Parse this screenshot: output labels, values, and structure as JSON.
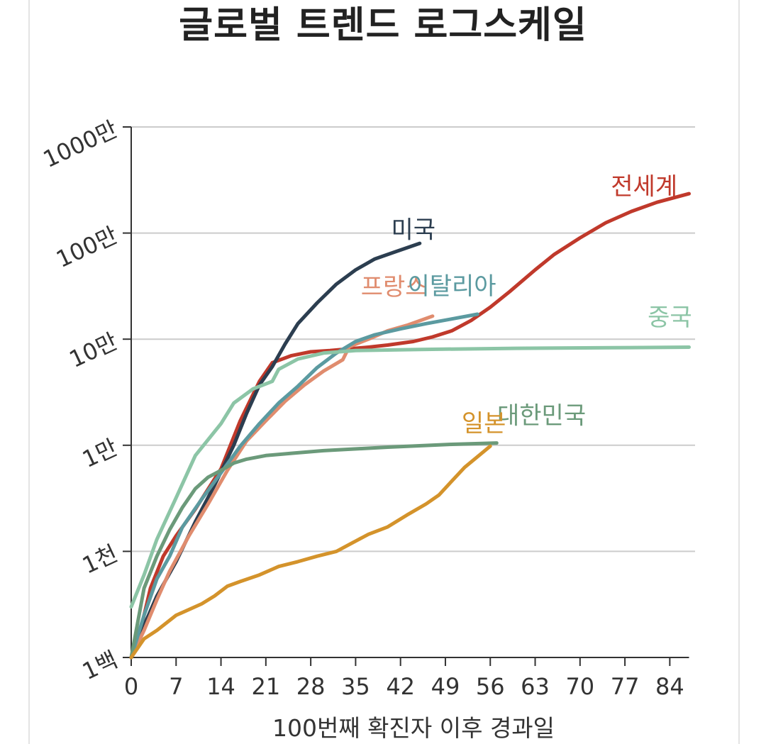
{
  "chart_data": {
    "type": "line",
    "title": "글로벌 트렌드 로그스케일",
    "xlabel": "100번째 확진자 이후 경과일",
    "ylabel": "",
    "y_scale": "log",
    "ylim": [
      100,
      10000000
    ],
    "xlim": [
      0,
      87
    ],
    "x_ticks": [
      0,
      7,
      14,
      21,
      28,
      35,
      42,
      49,
      56,
      63,
      70,
      77,
      84
    ],
    "x_tick_labels": [
      "0",
      "7",
      "14",
      "21",
      "28",
      "35",
      "42",
      "49",
      "56",
      "63",
      "70",
      "77",
      "84"
    ],
    "y_ticks": [
      100,
      1000,
      10000,
      100000,
      1000000,
      10000000
    ],
    "y_tick_labels": [
      "1백",
      "1천",
      "1만",
      "10만",
      "100만",
      "1000만"
    ],
    "grid": "horizontal",
    "legend": "inline labels at line ends",
    "series": [
      {
        "name": "전세계",
        "color": "#c0392b",
        "label_at": [
          80,
          2300000
        ],
        "points": [
          [
            0,
            100
          ],
          [
            1,
            140
          ],
          [
            2,
            250
          ],
          [
            3,
            450
          ],
          [
            5,
            900
          ],
          [
            7,
            1400
          ],
          [
            10,
            2500
          ],
          [
            14,
            6000
          ],
          [
            17,
            17000
          ],
          [
            20,
            40000
          ],
          [
            22,
            60000
          ],
          [
            25,
            70000
          ],
          [
            28,
            76000
          ],
          [
            31,
            78000
          ],
          [
            34,
            81000
          ],
          [
            37,
            84000
          ],
          [
            40,
            88000
          ],
          [
            44,
            95000
          ],
          [
            47,
            105000
          ],
          [
            50,
            120000
          ],
          [
            53,
            150000
          ],
          [
            56,
            200000
          ],
          [
            59,
            280000
          ],
          [
            63,
            450000
          ],
          [
            66,
            630000
          ],
          [
            70,
            900000
          ],
          [
            74,
            1250000
          ],
          [
            78,
            1600000
          ],
          [
            82,
            1950000
          ],
          [
            87,
            2350000
          ]
        ]
      },
      {
        "name": "미국",
        "color": "#2c3e50",
        "label_at": [
          44,
          900000
        ],
        "points": [
          [
            0,
            100
          ],
          [
            2,
            200
          ],
          [
            4,
            380
          ],
          [
            7,
            800
          ],
          [
            10,
            1900
          ],
          [
            13,
            4200
          ],
          [
            16,
            10000
          ],
          [
            18,
            20000
          ],
          [
            20,
            37000
          ],
          [
            22,
            55000
          ],
          [
            24,
            90000
          ],
          [
            26,
            140000
          ],
          [
            29,
            220000
          ],
          [
            32,
            330000
          ],
          [
            35,
            450000
          ],
          [
            38,
            570000
          ],
          [
            41,
            660000
          ],
          [
            45,
            800000
          ]
        ]
      },
      {
        "name": "프랑스",
        "color": "#e08c6e",
        "label_at": [
          41,
          260000
        ],
        "points": [
          [
            0,
            100
          ],
          [
            2,
            180
          ],
          [
            4,
            350
          ],
          [
            6,
            650
          ],
          [
            9,
            1400
          ],
          [
            12,
            2800
          ],
          [
            15,
            5800
          ],
          [
            18,
            11000
          ],
          [
            21,
            17000
          ],
          [
            24,
            26000
          ],
          [
            27,
            37000
          ],
          [
            30,
            50000
          ],
          [
            33,
            64000
          ],
          [
            34,
            85000
          ],
          [
            37,
            100000
          ],
          [
            40,
            120000
          ],
          [
            43,
            135000
          ],
          [
            47,
            165000
          ]
        ]
      },
      {
        "name": "이탈리아",
        "color": "#5b9aa0",
        "label_at": [
          50,
          265000
        ],
        "points": [
          [
            0,
            100
          ],
          [
            2,
            250
          ],
          [
            4,
            550
          ],
          [
            6,
            900
          ],
          [
            8,
            1700
          ],
          [
            11,
            3100
          ],
          [
            14,
            5500
          ],
          [
            17,
            9800
          ],
          [
            20,
            16000
          ],
          [
            23,
            25000
          ],
          [
            26,
            36000
          ],
          [
            29,
            54000
          ],
          [
            32,
            74000
          ],
          [
            35,
            95000
          ],
          [
            38,
            110000
          ],
          [
            42,
            125000
          ],
          [
            46,
            140000
          ],
          [
            50,
            155000
          ],
          [
            54,
            172000
          ]
        ]
      },
      {
        "name": "중국",
        "color": "#8cc5a6",
        "label_at": [
          84,
          134000
        ],
        "points": [
          [
            0,
            300
          ],
          [
            2,
            600
          ],
          [
            4,
            1300
          ],
          [
            7,
            3200
          ],
          [
            10,
            8000
          ],
          [
            14,
            16000
          ],
          [
            16,
            25000
          ],
          [
            19,
            34000
          ],
          [
            22,
            40000
          ],
          [
            23,
            52000
          ],
          [
            26,
            65000
          ],
          [
            30,
            74000
          ],
          [
            35,
            78000
          ],
          [
            45,
            80000
          ],
          [
            60,
            82000
          ],
          [
            75,
            83000
          ],
          [
            87,
            84000
          ]
        ]
      },
      {
        "name": "대한민국",
        "color": "#6b9a7a",
        "label_at": [
          64,
          16000
        ],
        "points": [
          [
            0,
            100
          ],
          [
            2,
            450
          ],
          [
            4,
            900
          ],
          [
            6,
            1600
          ],
          [
            8,
            2600
          ],
          [
            10,
            3900
          ],
          [
            12,
            5000
          ],
          [
            14,
            5800
          ],
          [
            16,
            6800
          ],
          [
            18,
            7400
          ],
          [
            21,
            8000
          ],
          [
            25,
            8400
          ],
          [
            30,
            8900
          ],
          [
            40,
            9600
          ],
          [
            50,
            10200
          ],
          [
            57,
            10500
          ]
        ]
      },
      {
        "name": "일본",
        "color": "#d4932b",
        "label_at": [
          55,
          13500
        ],
        "points": [
          [
            0,
            100
          ],
          [
            2,
            150
          ],
          [
            4,
            180
          ],
          [
            7,
            250
          ],
          [
            11,
            320
          ],
          [
            13,
            380
          ],
          [
            15,
            470
          ],
          [
            17,
            520
          ],
          [
            20,
            600
          ],
          [
            23,
            720
          ],
          [
            26,
            800
          ],
          [
            29,
            900
          ],
          [
            32,
            1000
          ],
          [
            35,
            1250
          ],
          [
            37,
            1450
          ],
          [
            40,
            1700
          ],
          [
            43,
            2200
          ],
          [
            46,
            2800
          ],
          [
            48,
            3400
          ],
          [
            50,
            4600
          ],
          [
            52,
            6200
          ],
          [
            56,
            9800
          ]
        ]
      }
    ]
  }
}
